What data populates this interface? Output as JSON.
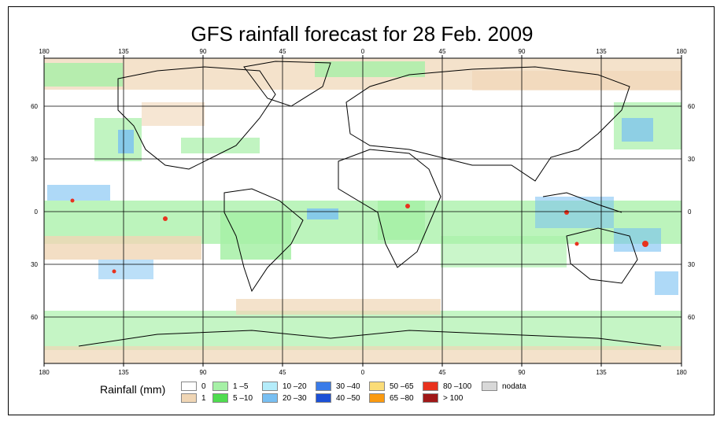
{
  "title": "GFS rainfall forecast for 28 Feb. 2009",
  "axes": {
    "lon_top": [
      "180",
      "135",
      "90",
      "45",
      "0",
      "45",
      "90",
      "135",
      "180"
    ],
    "lon_bottom": [
      "180",
      "135",
      "90",
      "45",
      "0",
      "45",
      "90",
      "135",
      "180"
    ],
    "lat_left": [
      "60",
      "30",
      "0",
      "30",
      "60"
    ],
    "lat_right": [
      "60",
      "30",
      "0",
      "30",
      "60"
    ]
  },
  "legend": {
    "title": "Rainfall (mm)",
    "items": [
      {
        "label": "0",
        "color": "#ffffff"
      },
      {
        "label": "1",
        "color": "#f0d6b5"
      },
      {
        "label": "1 –5",
        "color": "#a6f0a6"
      },
      {
        "label": "5 –10",
        "color": "#4fdc4f"
      },
      {
        "label": "10 –20",
        "color": "#b4ecfa"
      },
      {
        "label": "20 –30",
        "color": "#78bff2"
      },
      {
        "label": "30 –40",
        "color": "#3a7be8"
      },
      {
        "label": "40 –50",
        "color": "#1c50d6"
      },
      {
        "label": "50 –65",
        "color": "#fadc78"
      },
      {
        "label": "65 –80",
        "color": "#fa9a10"
      },
      {
        "label": "80 –100",
        "color": "#e8321e"
      },
      {
        "label": "> 100",
        "color": "#a01818"
      },
      {
        "label": "nodata",
        "color": "#d8d8d8"
      }
    ]
  }
}
